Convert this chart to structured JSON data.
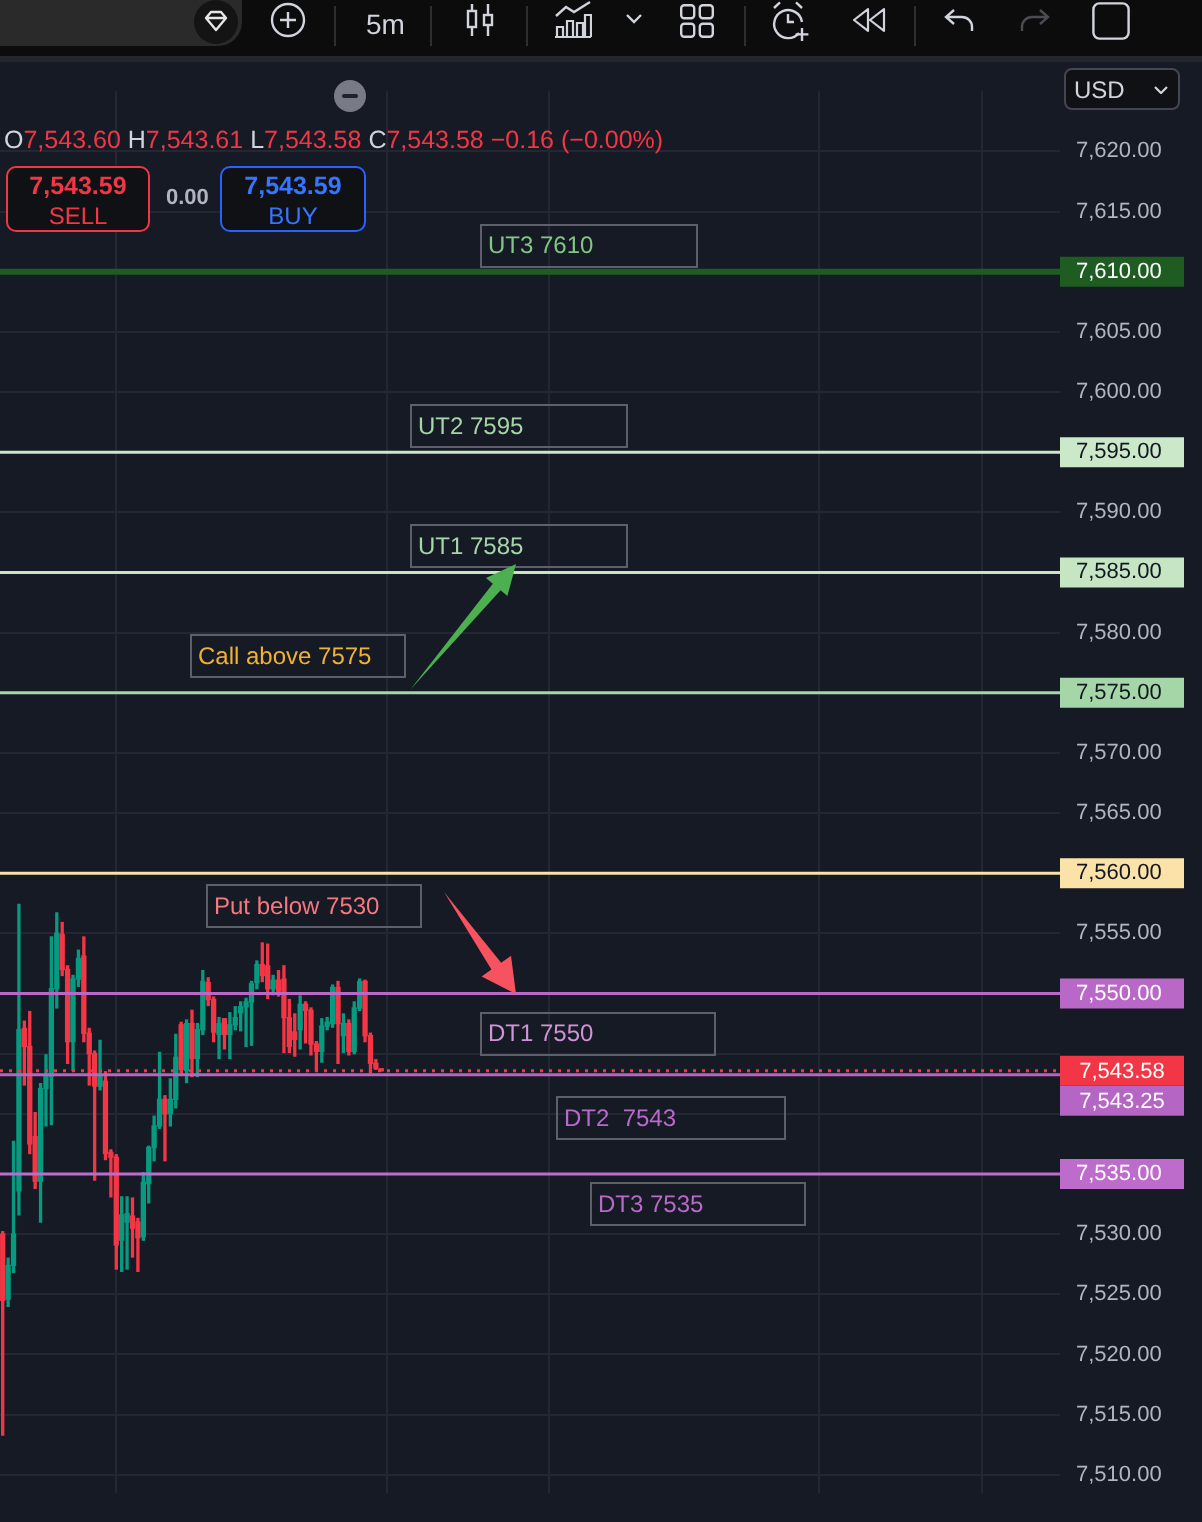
{
  "chart_data": {
    "type": "candlestick",
    "subtitle": "O7,543.60 H7,543.61 L7,543.58 C7,543.58 −0.16 (−0.00%)",
    "categories": [
      null,
      null,
      null,
      null,
      null,
      null,
      null,
      null,
      null,
      null,
      null,
      null,
      null,
      null,
      null,
      null,
      null,
      null,
      null,
      null,
      null,
      null,
      null,
      null,
      null,
      null,
      null,
      null,
      null,
      null,
      null,
      null,
      null,
      null,
      null,
      null,
      null,
      null,
      null,
      null,
      null,
      null,
      null,
      null,
      null,
      null,
      null,
      null,
      null,
      null,
      null,
      null,
      null,
      null,
      null,
      null,
      null,
      null,
      null,
      null,
      null,
      null,
      null,
      null,
      null,
      null,
      null,
      null,
      null,
      null,
      null,
      null,
      null,
      null,
      null,
      null,
      null,
      null,
      null,
      null,
      null,
      null,
      null,
      null,
      null,
      null,
      null,
      null,
      null,
      null,
      null,
      null,
      null,
      null,
      null,
      null,
      null,
      null,
      null,
      null,
      null,
      null,
      null,
      null,
      null,
      null,
      null,
      null,
      null,
      null,
      null,
      null,
      null,
      null,
      null,
      null,
      null,
      null,
      null,
      null,
      null,
      null,
      null,
      null,
      null,
      null,
      null,
      null,
      null,
      null,
      null,
      null,
      null,
      null,
      null,
      null,
      null,
      null,
      null,
      null,
      null,
      null,
      null,
      null,
      null,
      null,
      null,
      null,
      null,
      null,
      null,
      null,
      null,
      null,
      null,
      null,
      null,
      null,
      null,
      null,
      null,
      null,
      null,
      null,
      null,
      null,
      null,
      null,
      null,
      null,
      null,
      null,
      null,
      null,
      null,
      null,
      null,
      null,
      null,
      null,
      null,
      null,
      null,
      null,
      null,
      null,
      null,
      null,
      null,
      null,
      null,
      null,
      null,
      null,
      null,
      null
    ],
    "ohlc": [
      [
        7530.0,
        7530.2,
        7513.3,
        7524.5
      ],
      [
        7524.6,
        7528.0,
        7524.0,
        7527.4
      ],
      [
        7527.4,
        7537.7,
        7526.8,
        7530.0
      ],
      [
        7533.6,
        7557.4,
        7531.6,
        7547.0
      ],
      [
        7547.1,
        7547.7,
        7542.4,
        7545.6
      ],
      [
        7545.6,
        7548.5,
        7536.7,
        7537.5
      ],
      [
        7538.1,
        7540.1,
        7533.8,
        7534.4
      ],
      [
        7534.4,
        7542.5,
        7531.0,
        7542.1
      ],
      [
        7542.1,
        7544.9,
        7539.0,
        7543.1
      ],
      [
        7543.1,
        7554.7,
        7539.1,
        7550.4
      ],
      [
        7550.4,
        7556.7,
        7548.8,
        7555.0
      ],
      [
        7554.9,
        7555.9,
        7551.5,
        7552.0
      ],
      [
        7552.0,
        7552.3,
        7544.2,
        7546.0
      ],
      [
        7546.0,
        7551.5,
        7543.6,
        7551.2
      ],
      [
        7551.2,
        7553.6,
        7550.6,
        7552.9
      ],
      [
        7553.1,
        7554.7,
        7546.0,
        7546.7
      ],
      [
        7546.7,
        7547.1,
        7542.4,
        7545.0
      ],
      [
        7545.0,
        7545.2,
        7534.5,
        7542.3
      ],
      [
        7542.3,
        7546.1,
        7542.0,
        7543.2
      ],
      [
        7542.7,
        7543.5,
        7536.2,
        7536.7
      ],
      [
        7536.8,
        7537.0,
        7533.1,
        7536.4
      ],
      [
        7536.4,
        7536.6,
        7527.1,
        7529.1
      ],
      [
        7529.5,
        7533.1,
        7526.9,
        7531.6
      ],
      [
        7531.0,
        7533.1,
        7527.1,
        7531.7
      ],
      [
        7531.5,
        7533.0,
        7528.1,
        7530.5
      ],
      [
        7531.0,
        7531.3,
        7526.9,
        7529.7
      ],
      [
        7529.8,
        7535.1,
        7529.5,
        7534.3
      ],
      [
        7534.2,
        7537.3,
        7532.6,
        7537.2
      ],
      [
        7537.2,
        7539.8,
        7536.1,
        7539.0
      ],
      [
        7539.0,
        7545.1,
        7538.8,
        7541.2
      ],
      [
        7541.2,
        7541.5,
        7536.1,
        7540.0
      ],
      [
        7540.0,
        7542.9,
        7539.0,
        7541.2
      ],
      [
        7541.2,
        7546.6,
        7540.5,
        7544.7
      ],
      [
        7547.4,
        7547.6,
        7543.2,
        7543.7
      ],
      [
        7543.6,
        7547.8,
        7542.6,
        7547.5
      ],
      [
        7547.5,
        7548.6,
        7543.1,
        7544.6
      ],
      [
        7544.6,
        7547.5,
        7543.1,
        7547.0
      ],
      [
        7547.0,
        7551.9,
        7546.6,
        7551.0
      ],
      [
        7550.9,
        7551.3,
        7549.0,
        7549.5
      ],
      [
        7549.5,
        7549.7,
        7546.0,
        7546.8
      ],
      [
        7546.6,
        7548.0,
        7544.6,
        7547.5
      ],
      [
        7547.9,
        7547.9,
        7545.4,
        7546.6
      ],
      [
        7546.6,
        7548.4,
        7544.6,
        7547.4
      ],
      [
        7547.4,
        7548.9,
        7547.0,
        7548.0
      ],
      [
        7548.4,
        7549.3,
        7546.9,
        7548.9
      ],
      [
        7548.9,
        7549.6,
        7545.6,
        7549.3
      ],
      [
        7549.3,
        7551.0,
        7545.7,
        7550.8
      ],
      [
        7550.9,
        7552.7,
        7550.4,
        7552.4
      ],
      [
        7552.4,
        7554.2,
        7551.0,
        7551.5
      ],
      [
        7552.3,
        7554.1,
        7549.6,
        7550.4
      ],
      [
        7550.4,
        7551.5,
        7549.9,
        7551.1
      ],
      [
        7551.1,
        7551.9,
        7549.8,
        7550.2
      ],
      [
        7551.2,
        7552.3,
        7545.1,
        7548.0
      ],
      [
        7548.0,
        7549.5,
        7545.1,
        7545.6
      ],
      [
        7546.8,
        7548.3,
        7544.8,
        7546.2
      ],
      [
        7547.0,
        7549.8,
        7545.4,
        7549.1
      ],
      [
        7549.1,
        7549.3,
        7545.9,
        7548.6
      ],
      [
        7548.6,
        7548.8,
        7544.9,
        7545.8
      ],
      [
        7545.8,
        7546.0,
        7543.6,
        7545.2
      ],
      [
        7545.2,
        7547.9,
        7544.3,
        7547.3
      ],
      [
        7547.3,
        7548.0,
        7547.0,
        7547.6
      ],
      [
        7547.5,
        7550.7,
        7547.2,
        7550.5
      ],
      [
        7550.5,
        7551.0,
        7544.2,
        7547.5
      ],
      [
        7546.5,
        7548.3,
        7545.1,
        7547.5
      ],
      [
        7547.5,
        7547.8,
        7544.9,
        7545.2
      ],
      [
        7545.2,
        7549.3,
        7545.0,
        7548.8
      ],
      [
        7548.8,
        7551.2,
        7548.6,
        7551.0
      ],
      [
        7551.0,
        7551.1,
        7546.0,
        7546.5
      ],
      [
        7546.5,
        7546.7,
        7543.4,
        7544.2
      ],
      [
        7544.2,
        7544.5,
        7543.7,
        7543.8
      ],
      [
        7543.6,
        7543.61,
        7543.58,
        7543.58
      ],
      null,
      null,
      null,
      null,
      null,
      null,
      null,
      null,
      null,
      null,
      null,
      null,
      null,
      null,
      null,
      null,
      null,
      null,
      null,
      null,
      null,
      null,
      null,
      null,
      null,
      null,
      null,
      null,
      null,
      null,
      null,
      null,
      null,
      null,
      null,
      null,
      null,
      null,
      null,
      null,
      null,
      null,
      null,
      null,
      null,
      null,
      null,
      null,
      null,
      null,
      null,
      null,
      null,
      null,
      null,
      null,
      null,
      null,
      null,
      null,
      null,
      null,
      null,
      null,
      null,
      null,
      null,
      null,
      null,
      null,
      null,
      null,
      null,
      null,
      null,
      null,
      null,
      null,
      null,
      null,
      null,
      null,
      null,
      null,
      null,
      null,
      null,
      null,
      null,
      null,
      null,
      null,
      null,
      null,
      null,
      null,
      null,
      null,
      null,
      null,
      null,
      null,
      null,
      null,
      null,
      null,
      null,
      null,
      null,
      null,
      null,
      null,
      null,
      null,
      null,
      null,
      null,
      null,
      null,
      null,
      null,
      null,
      null,
      null,
      null
    ],
    "colors": [
      "#f23645",
      "#089981",
      "#089981",
      "#089981",
      "#f23645",
      "#f23645",
      "#f23645",
      "#089981",
      "#089981",
      "#089981",
      "#089981",
      "#f23645",
      "#f23645",
      "#089981",
      "#089981",
      "#f23645",
      "#f23645",
      "#f23645",
      "#089981",
      "#f23645",
      "#f23645",
      "#f23645",
      "#089981",
      "#089981",
      "#f23645",
      "#f23645",
      "#089981",
      "#089981",
      "#089981",
      "#089981",
      "#f23645",
      "#089981",
      "#089981",
      "#f23645",
      "#089981",
      "#f23645",
      "#089981",
      "#089981",
      "#f23645",
      "#f23645",
      "#089981",
      "#f23645",
      "#089981",
      "#089981",
      "#089981",
      "#089981",
      "#089981",
      "#089981",
      "#f23645",
      "#f23645",
      "#089981",
      "#f23645",
      "#f23645",
      "#f23645",
      "#f23645",
      "#089981",
      "#f23645",
      "#f23645",
      "#f23645",
      "#089981",
      "#089981",
      "#089981",
      "#f23645",
      "#089981",
      "#f23645",
      "#089981",
      "#089981",
      "#f23645",
      "#f23645",
      "#f23645",
      "#f23645",
      null,
      null,
      null,
      null,
      null,
      null,
      null,
      null,
      null,
      null,
      null,
      null,
      null,
      null,
      null,
      null,
      null,
      null,
      null,
      null,
      null,
      null,
      null,
      null,
      null,
      null,
      null,
      null,
      null,
      null,
      null,
      null,
      null,
      null,
      null,
      null,
      null,
      null,
      null,
      null,
      null,
      null,
      null,
      null,
      null,
      null,
      null,
      null,
      null,
      null,
      null,
      null,
      null,
      null,
      null,
      null,
      null,
      null,
      null,
      null,
      null,
      null,
      null,
      null,
      null,
      null,
      null,
      null,
      null,
      null,
      null,
      null,
      null,
      null,
      null,
      null,
      null,
      null,
      null,
      null,
      null,
      null,
      null,
      null,
      null,
      null,
      null,
      null,
      null,
      null,
      null,
      null,
      null,
      null,
      null,
      null,
      null,
      null,
      null,
      null,
      null,
      null,
      null,
      null,
      null,
      null,
      null,
      null,
      null,
      null,
      null,
      null,
      null,
      null,
      null,
      null,
      null,
      null,
      null,
      null,
      null,
      null,
      null,
      null,
      null
    ],
    "ylim": [
      7508.5,
      7625
    ],
    "yticks": [
      {
        "value": 7510,
        "label": "7,510.00"
      },
      {
        "value": 7515,
        "label": "7,515.00"
      },
      {
        "value": 7520,
        "label": "7,520.00"
      },
      {
        "value": 7525,
        "label": "7,525.00"
      },
      {
        "value": 7530,
        "label": "7,530.00"
      },
      {
        "value": 7535,
        "label": "7,535.00"
      },
      {
        "value": 7540,
        "label": null
      },
      {
        "value": 7545,
        "label": null
      },
      {
        "value": 7550,
        "label": "7,550.00"
      },
      {
        "value": 7555,
        "label": "7,555.00"
      },
      {
        "value": 7560,
        "label": "7,560.00"
      },
      {
        "value": 7565,
        "label": "7,565.00"
      },
      {
        "value": 7570,
        "label": "7,570.00"
      },
      {
        "value": 7575,
        "label": "7,575.00"
      },
      {
        "value": 7580,
        "label": "7,580.00"
      },
      {
        "value": 7585,
        "label": "7,585.00"
      },
      {
        "value": 7590,
        "label": "7,590.00"
      },
      {
        "value": 7595,
        "label": "7,595.00"
      },
      {
        "value": 7600,
        "label": "7,600.00"
      },
      {
        "value": 7605,
        "label": "7,605.00"
      },
      {
        "value": 7610,
        "label": "7,610.00"
      },
      {
        "value": 7615,
        "label": "7,615.00"
      },
      {
        "value": 7620,
        "label": "7,620.00"
      }
    ],
    "grid": true,
    "tick_labels": "y",
    "ref_lines": [
      {
        "axis": "y",
        "value": 7610,
        "color": "#1e5c22"
      },
      {
        "axis": "y",
        "value": 7595,
        "color": "#cbe8c8"
      },
      {
        "axis": "y",
        "value": 7585,
        "color": "#c6e6c3"
      },
      {
        "axis": "y",
        "value": 7575,
        "color": "#a5d6a7"
      },
      {
        "axis": "y",
        "value": 7560,
        "color": "#fbe2a8"
      },
      {
        "axis": "y",
        "value": 7550,
        "color": "#ba68c8"
      },
      {
        "axis": "y",
        "value": 7543.25,
        "label": "7,543.25",
        "color": "#b565c4"
      },
      {
        "axis": "y",
        "value": 7535,
        "color": "#be6ccc"
      },
      {
        "axis": "y",
        "value": 7543.58,
        "label": "7,543.58",
        "color": "#f23645",
        "line_style": "dotted"
      }
    ],
    "annotations": [
      {
        "text": "UT3 7610",
        "y": 7610
      },
      {
        "text": "UT2 7595",
        "y": 7595
      },
      {
        "text": "UT1 7585",
        "y": 7585
      },
      {
        "text": "Call above 7575",
        "y": 7575
      },
      "Put below 7530",
      {
        "text": "DT1 7550",
        "y": 7550
      },
      {
        "text": "DT2  7543",
        "y": 7543.25
      },
      {
        "text": "DT3 7535",
        "y": 7535
      },
      "7,543.59",
      "SELL",
      "0.00",
      "7,543.59",
      "BUY",
      "5m",
      "USD"
    ]
  }
}
